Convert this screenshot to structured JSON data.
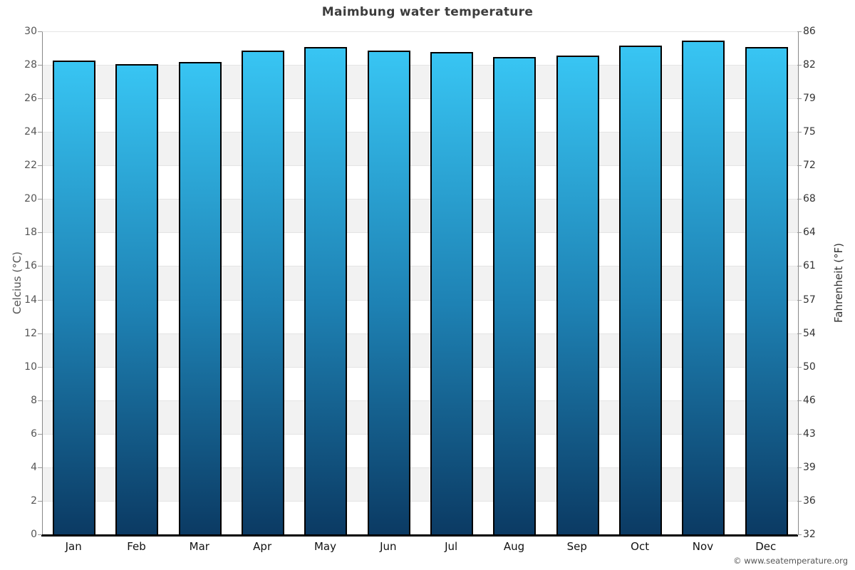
{
  "header": {
    "title": "Maimbung water temperature"
  },
  "footer": {
    "attribution": "© www.seatemperature.org"
  },
  "chart_data": {
    "type": "bar",
    "title": "Maimbung water temperature",
    "categories": [
      "Jan",
      "Feb",
      "Mar",
      "Apr",
      "May",
      "Jun",
      "Jul",
      "Aug",
      "Sep",
      "Oct",
      "Nov",
      "Dec"
    ],
    "series": [
      {
        "name": "Water temperature",
        "unit": "°C",
        "values": [
          28.3,
          28.1,
          28.2,
          28.9,
          29.1,
          28.9,
          28.8,
          28.5,
          28.6,
          29.2,
          29.5,
          29.1
        ]
      }
    ],
    "xlabel": "",
    "ylabel_left": "Celcius (°C)",
    "ylabel_right": "Fahrenheit (°F)",
    "ylim": [
      0,
      30
    ],
    "ytick_step": 2,
    "celsius_ticks": [
      0,
      2,
      4,
      6,
      8,
      10,
      12,
      14,
      16,
      18,
      20,
      22,
      24,
      26,
      28,
      30
    ],
    "fahrenheit_tick_labels": [
      "32",
      "36",
      "39",
      "43",
      "46",
      "50",
      "54",
      "57",
      "61",
      "64",
      "68",
      "72",
      "75",
      "79",
      "82",
      "86"
    ],
    "grid": "alternating horizontal bands every 2°C, light gray gridlines",
    "legend": "none",
    "bar_style": {
      "gradient_top": "#38c5f3",
      "gradient_mid": "#1e82b4",
      "gradient_bottom": "#0b3a63",
      "border": "#000000"
    },
    "colors": {
      "background": "#ffffff",
      "band_gray": "#f2f2f2",
      "gridline": "#e4e4e4",
      "axis_line": "#888888",
      "x_axis_line": "#000000",
      "title_text": "#3d3d3d",
      "tick_text_left": "#555555",
      "tick_text_right": "#333333",
      "month_text": "#111111",
      "attribution_text": "#555555"
    },
    "attribution": "© www.seatemperature.org"
  }
}
